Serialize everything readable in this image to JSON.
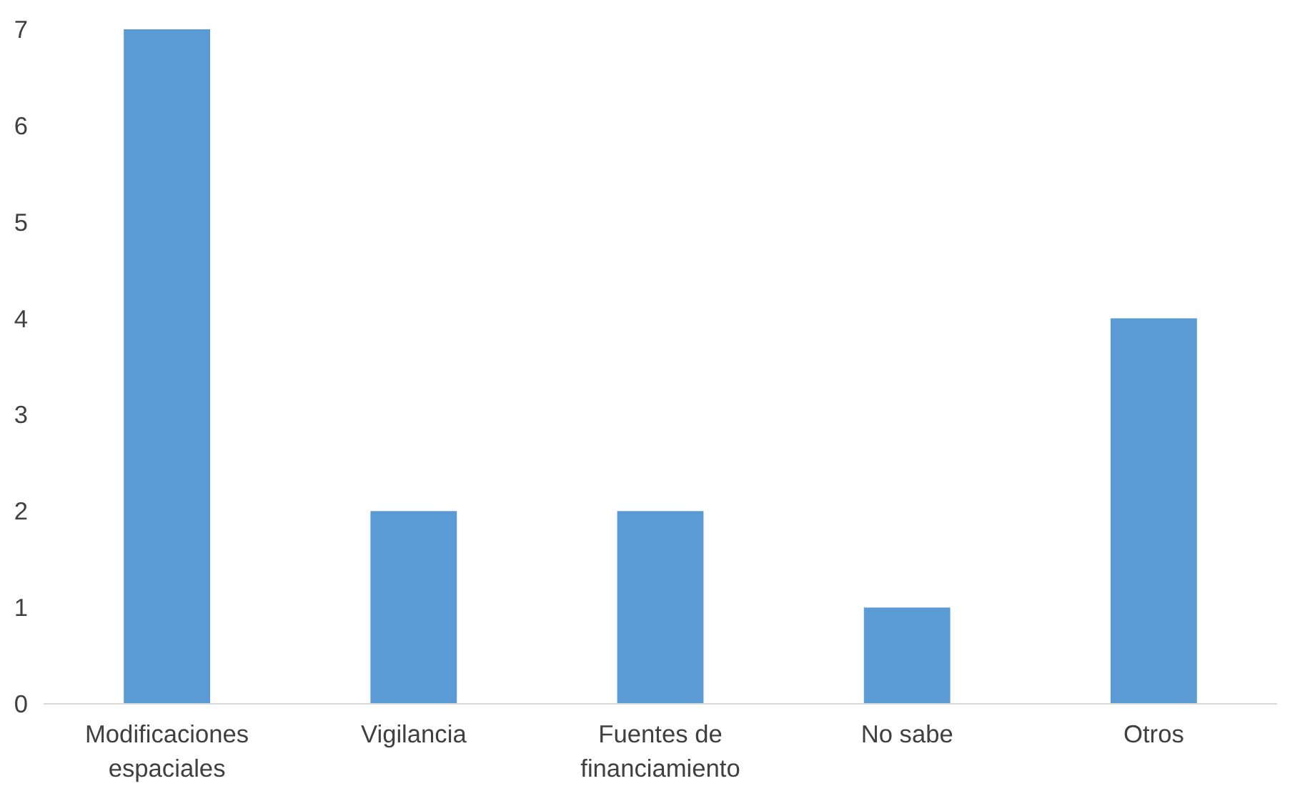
{
  "chart_data": {
    "type": "bar",
    "categories": [
      "Modificaciones espaciales",
      "Vigilancia",
      "Fuentes de financiamiento",
      "No sabe",
      "Otros"
    ],
    "values": [
      7,
      2,
      2,
      1,
      4
    ],
    "color": "#5b9bd5",
    "ylim": [
      0,
      7
    ],
    "yticks": [
      0,
      1,
      2,
      3,
      4,
      5,
      6,
      7
    ]
  }
}
